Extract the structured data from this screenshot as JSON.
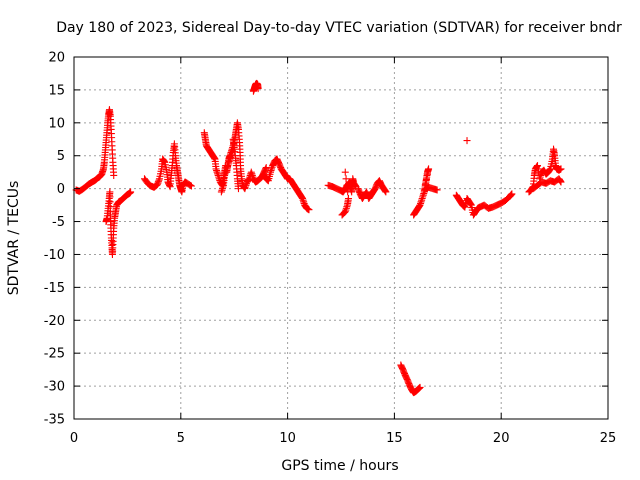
{
  "chart_data": {
    "type": "scatter",
    "title": "Day 180 of 2023, Sidereal Day-to-day VTEC variation (SDTVAR) for receiver bndr",
    "xlabel": "GPS time / hours",
    "ylabel": "SDTVAR / TECUs",
    "xlim": [
      0,
      25
    ],
    "ylim": [
      -35,
      20
    ],
    "xticks": [
      0,
      5,
      10,
      15,
      20,
      25
    ],
    "yticks": [
      20,
      15,
      10,
      5,
      0,
      -5,
      -10,
      -15,
      -20,
      -25,
      -30,
      -35
    ],
    "grid": true,
    "marker": "+",
    "color": "#ff0000",
    "segments": [
      [
        [
          0.1,
          -0.2
        ],
        [
          0.25,
          -0.4
        ],
        [
          0.4,
          -0.1
        ],
        [
          0.55,
          0.3
        ],
        [
          0.7,
          0.7
        ],
        [
          0.85,
          1.0
        ],
        [
          1.0,
          1.3
        ],
        [
          1.1,
          1.6
        ],
        [
          1.2,
          1.8
        ],
        [
          1.3,
          2.2
        ],
        [
          1.38,
          3.0
        ],
        [
          1.42,
          4.0
        ],
        [
          1.46,
          5.5
        ],
        [
          1.5,
          7.0
        ],
        [
          1.54,
          8.5
        ],
        [
          1.58,
          10.0
        ],
        [
          1.62,
          11.2
        ],
        [
          1.66,
          12.0
        ],
        [
          1.7,
          11.0
        ],
        [
          1.74,
          9.0
        ],
        [
          1.78,
          6.5
        ],
        [
          1.82,
          4.0
        ],
        [
          1.86,
          2.0
        ]
      ],
      [
        [
          1.5,
          -5.0
        ],
        [
          1.55,
          -4.5
        ],
        [
          1.6,
          -3.0
        ],
        [
          1.65,
          -1.5
        ],
        [
          1.68,
          -0.5
        ],
        [
          1.7,
          -3.5
        ],
        [
          1.72,
          -5.5
        ],
        [
          1.75,
          -7.5
        ],
        [
          1.78,
          -9.0
        ],
        [
          1.8,
          -10.0
        ],
        [
          1.83,
          -8.0
        ],
        [
          1.86,
          -6.0
        ],
        [
          1.9,
          -4.5
        ],
        [
          1.95,
          -3.5
        ],
        [
          2.0,
          -2.5
        ],
        [
          2.1,
          -2.0
        ],
        [
          2.2,
          -1.8
        ],
        [
          2.3,
          -1.5
        ],
        [
          2.4,
          -1.2
        ],
        [
          2.5,
          -0.9
        ],
        [
          2.6,
          -0.7
        ],
        [
          2.65,
          -0.5
        ]
      ],
      [
        [
          3.3,
          1.5
        ],
        [
          3.45,
          0.8
        ],
        [
          3.6,
          0.4
        ],
        [
          3.75,
          0.2
        ],
        [
          3.9,
          0.6
        ],
        [
          4.0,
          1.5
        ],
        [
          4.1,
          3.0
        ],
        [
          4.15,
          4.5
        ],
        [
          4.25,
          4.0
        ],
        [
          4.35,
          2.5
        ],
        [
          4.4,
          1.0
        ],
        [
          4.5,
          0.3
        ],
        [
          4.55,
          2.0
        ],
        [
          4.6,
          3.5
        ],
        [
          4.65,
          5.5
        ],
        [
          4.7,
          6.8
        ],
        [
          4.75,
          5.0
        ],
        [
          4.8,
          3.5
        ],
        [
          4.85,
          2.5
        ],
        [
          4.9,
          1.5
        ],
        [
          4.95,
          0.5
        ],
        [
          5.0,
          0.0
        ],
        [
          5.05,
          -0.5
        ],
        [
          5.1,
          0.5
        ],
        [
          5.2,
          1.0
        ],
        [
          5.3,
          0.8
        ],
        [
          5.5,
          0.4
        ]
      ],
      [
        [
          6.1,
          8.5
        ],
        [
          6.15,
          7.5
        ],
        [
          6.2,
          6.5
        ],
        [
          6.3,
          6.0
        ],
        [
          6.4,
          5.5
        ],
        [
          6.5,
          5.0
        ],
        [
          6.6,
          4.5
        ],
        [
          6.65,
          3.0
        ],
        [
          6.75,
          2.0
        ],
        [
          6.85,
          1.0
        ],
        [
          6.95,
          0.5
        ],
        [
          7.0,
          1.5
        ],
        [
          7.05,
          2.5
        ],
        [
          7.1,
          3.5
        ],
        [
          7.15,
          2.5
        ],
        [
          7.2,
          3.5
        ],
        [
          7.25,
          4.5
        ],
        [
          7.3,
          5.0
        ],
        [
          7.4,
          6.0
        ],
        [
          7.5,
          7.0
        ],
        [
          7.55,
          8.0
        ],
        [
          7.6,
          9.0
        ],
        [
          7.65,
          10.0
        ],
        [
          7.7,
          9.0
        ],
        [
          7.75,
          7.0
        ],
        [
          7.78,
          5.0
        ],
        [
          7.8,
          3.0
        ],
        [
          7.85,
          1.5
        ],
        [
          7.9,
          0.5
        ],
        [
          8.0,
          0.0
        ],
        [
          8.1,
          1.0
        ],
        [
          8.2,
          1.5
        ],
        [
          8.3,
          2.5
        ],
        [
          8.4,
          1.5
        ],
        [
          8.5,
          1.0
        ],
        [
          8.6,
          1.2
        ],
        [
          8.7,
          1.5
        ],
        [
          8.8,
          1.8
        ],
        [
          8.9,
          2.5
        ],
        [
          9.0,
          3.2
        ]
      ],
      [
        [
          6.9,
          -0.5
        ],
        [
          7.0,
          0.5
        ],
        [
          7.05,
          2.0
        ],
        [
          7.15,
          3.0
        ],
        [
          7.3,
          4.5
        ],
        [
          7.4,
          5.5
        ],
        [
          7.5,
          6.5
        ],
        [
          7.45,
          7.5
        ],
        [
          7.55,
          5.0
        ],
        [
          7.6,
          3.5
        ],
        [
          7.65,
          1.5
        ],
        [
          7.7,
          0.0
        ]
      ],
      [
        [
          8.4,
          14.8
        ],
        [
          8.45,
          15.3
        ],
        [
          8.5,
          15.8
        ],
        [
          8.55,
          16.0
        ],
        [
          8.6,
          15.8
        ],
        [
          8.62,
          15.2
        ]
      ],
      [
        [
          8.9,
          2.0
        ],
        [
          9.0,
          1.5
        ],
        [
          9.1,
          1.2
        ],
        [
          9.2,
          2.5
        ],
        [
          9.3,
          3.5
        ],
        [
          9.4,
          4.2
        ],
        [
          9.5,
          4.5
        ],
        [
          9.6,
          3.8
        ],
        [
          9.7,
          3.0
        ],
        [
          9.8,
          2.5
        ],
        [
          9.9,
          2.0
        ],
        [
          10.0,
          1.5
        ],
        [
          10.1,
          1.5
        ],
        [
          10.2,
          1.0
        ],
        [
          10.3,
          0.5
        ],
        [
          10.4,
          0.0
        ],
        [
          10.5,
          -0.5
        ],
        [
          10.6,
          -1.0
        ],
        [
          10.7,
          -1.5
        ],
        [
          10.8,
          -2.5
        ],
        [
          10.9,
          -3.0
        ],
        [
          11.0,
          -3.2
        ]
      ],
      [
        [
          11.9,
          0.5
        ],
        [
          12.1,
          0.3
        ],
        [
          12.3,
          0.0
        ],
        [
          12.5,
          -0.3
        ],
        [
          12.6,
          -0.5
        ],
        [
          12.7,
          0.0
        ],
        [
          12.8,
          0.5
        ],
        [
          12.9,
          1.0
        ],
        [
          12.95,
          0.2
        ],
        [
          13.0,
          -0.5
        ],
        [
          13.05,
          1.5
        ],
        [
          13.1,
          0.8
        ],
        [
          13.2,
          0.3
        ]
      ],
      [
        [
          12.55,
          -4.0
        ],
        [
          12.7,
          -3.5
        ],
        [
          12.8,
          -2.5
        ],
        [
          12.85,
          -1.5
        ],
        [
          12.7,
          2.5
        ]
      ],
      [
        [
          13.3,
          0.0
        ],
        [
          13.4,
          -0.8
        ],
        [
          13.5,
          -1.5
        ],
        [
          13.6,
          -1.0
        ],
        [
          13.7,
          -0.5
        ],
        [
          13.8,
          -1.5
        ],
        [
          13.9,
          -1.0
        ],
        [
          14.0,
          -0.5
        ],
        [
          14.1,
          0.0
        ],
        [
          14.2,
          0.8
        ],
        [
          14.3,
          1.2
        ],
        [
          14.4,
          0.5
        ],
        [
          14.5,
          0.0
        ],
        [
          14.6,
          -0.5
        ]
      ],
      [
        [
          15.3,
          -26.8
        ],
        [
          15.4,
          -27.5
        ],
        [
          15.5,
          -28.3
        ],
        [
          15.6,
          -29.0
        ],
        [
          15.7,
          -29.8
        ],
        [
          15.8,
          -30.5
        ],
        [
          15.9,
          -31.0
        ],
        [
          16.0,
          -30.8
        ],
        [
          16.1,
          -30.5
        ],
        [
          16.2,
          -30.2
        ]
      ],
      [
        [
          15.9,
          -4.0
        ],
        [
          16.0,
          -3.5
        ],
        [
          16.1,
          -3.0
        ],
        [
          16.2,
          -2.5
        ],
        [
          16.3,
          -1.5
        ],
        [
          16.4,
          -0.5
        ],
        [
          16.45,
          0.5
        ],
        [
          16.5,
          1.5
        ],
        [
          16.55,
          2.5
        ],
        [
          16.6,
          3.0
        ],
        [
          16.4,
          -0.2
        ],
        [
          16.6,
          0.2
        ],
        [
          16.8,
          0.0
        ],
        [
          17.0,
          -0.2
        ]
      ],
      [
        [
          18.4,
          7.3
        ]
      ],
      [
        [
          17.9,
          -1.0
        ],
        [
          18.0,
          -1.5
        ],
        [
          18.1,
          -2.0
        ],
        [
          18.2,
          -2.5
        ],
        [
          18.3,
          -2.8
        ],
        [
          18.4,
          -1.5
        ],
        [
          18.5,
          -2.0
        ],
        [
          18.6,
          -2.5
        ],
        [
          18.7,
          -4.0
        ],
        [
          18.8,
          -3.5
        ],
        [
          18.9,
          -3.0
        ],
        [
          19.0,
          -2.8
        ],
        [
          19.2,
          -2.5
        ],
        [
          19.4,
          -3.0
        ],
        [
          19.6,
          -2.8
        ],
        [
          19.8,
          -2.5
        ],
        [
          20.0,
          -2.2
        ],
        [
          20.2,
          -1.8
        ],
        [
          20.4,
          -1.2
        ],
        [
          20.5,
          -0.8
        ]
      ],
      [
        [
          21.3,
          -0.5
        ],
        [
          21.4,
          -0.2
        ],
        [
          21.5,
          0.3
        ],
        [
          21.55,
          2.0
        ],
        [
          21.6,
          3.0
        ],
        [
          21.7,
          3.5
        ],
        [
          21.8,
          1.5
        ],
        [
          21.9,
          2.5
        ],
        [
          22.0,
          2.8
        ],
        [
          22.1,
          2.2
        ],
        [
          22.2,
          2.5
        ],
        [
          22.3,
          3.0
        ],
        [
          22.4,
          4.5
        ],
        [
          22.45,
          6.0
        ],
        [
          22.5,
          5.0
        ],
        [
          22.55,
          3.5
        ],
        [
          22.6,
          3.0
        ],
        [
          22.7,
          2.8
        ],
        [
          22.8,
          3.0
        ]
      ],
      [
        [
          21.5,
          0.0
        ],
        [
          21.7,
          0.5
        ],
        [
          21.9,
          1.0
        ],
        [
          22.1,
          0.8
        ],
        [
          22.3,
          1.2
        ],
        [
          22.5,
          1.0
        ],
        [
          22.7,
          1.5
        ],
        [
          22.8,
          1.0
        ]
      ]
    ]
  }
}
